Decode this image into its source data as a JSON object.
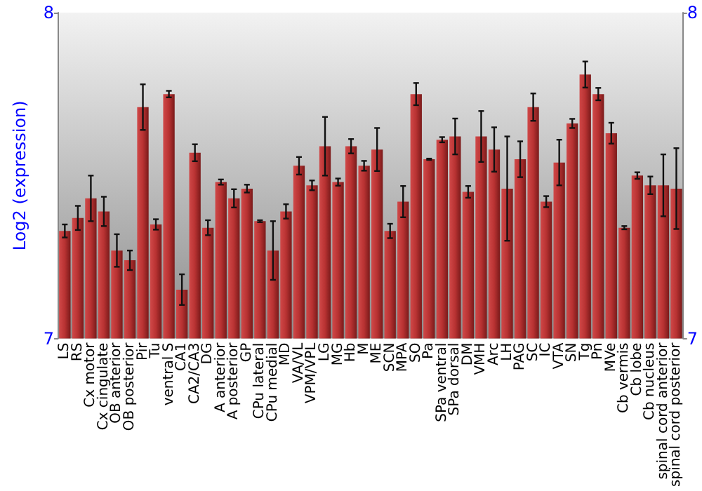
{
  "chart_data": {
    "type": "bar",
    "ylabel": "Log2 (expression)",
    "categories": [
      "LS",
      "RS",
      "Cx motor",
      "Cx cingulate",
      "OB anterior",
      "OB posterior",
      "Pir",
      "Tu",
      "ventral S",
      "CA1",
      "CA2/CA3",
      "DG",
      "A anterior",
      "A posterior",
      "GP",
      "CPu lateral",
      "CPu medial",
      "MD",
      "VA/VL",
      "VPM/VPL",
      "LG",
      "MG",
      "Hb",
      "M",
      "ME",
      "SCN",
      "MPA",
      "SO",
      "Pa",
      "SPa ventral",
      "SPa dorsal",
      "DM",
      "VMH",
      "Arc",
      "LH",
      "PAG",
      "SC",
      "IC",
      "VTA",
      "SN",
      "Tg",
      "Pn",
      "MVe",
      "Cb vermis",
      "Cb lobe",
      "Cb nucleus",
      "spinal cord anterior",
      "spinal cord posterior"
    ],
    "values": [
      7.33,
      7.37,
      7.43,
      7.39,
      7.27,
      7.24,
      7.71,
      7.35,
      7.75,
      7.15,
      7.57,
      7.34,
      7.48,
      7.43,
      7.46,
      7.36,
      7.27,
      7.39,
      7.53,
      7.47,
      7.59,
      7.48,
      7.59,
      7.53,
      7.58,
      7.33,
      7.42,
      7.75,
      7.55,
      7.61,
      7.62,
      7.45,
      7.62,
      7.58,
      7.46,
      7.55,
      7.71,
      7.42,
      7.54,
      7.66,
      7.81,
      7.75,
      7.63,
      7.34,
      7.5,
      7.47,
      7.47,
      7.46
    ],
    "errors": [
      0.02,
      0.037,
      0.07,
      0.045,
      0.05,
      0.03,
      0.07,
      0.016,
      0.01,
      0.047,
      0.026,
      0.023,
      0.008,
      0.028,
      0.012,
      0.003,
      0.09,
      0.022,
      0.027,
      0.015,
      0.09,
      0.011,
      0.022,
      0.015,
      0.066,
      0.022,
      0.048,
      0.034,
      0.002,
      0.008,
      0.055,
      0.018,
      0.078,
      0.068,
      0.16,
      0.055,
      0.042,
      0.017,
      0.07,
      0.014,
      0.04,
      0.019,
      0.032,
      0.005,
      0.01,
      0.027,
      0.095,
      0.124
    ],
    "color": "#b83232",
    "ylim": [
      7,
      8
    ],
    "yticks": [
      7,
      8
    ],
    "y2lim": [
      7,
      8
    ],
    "y2ticks": [
      7,
      8
    ]
  }
}
